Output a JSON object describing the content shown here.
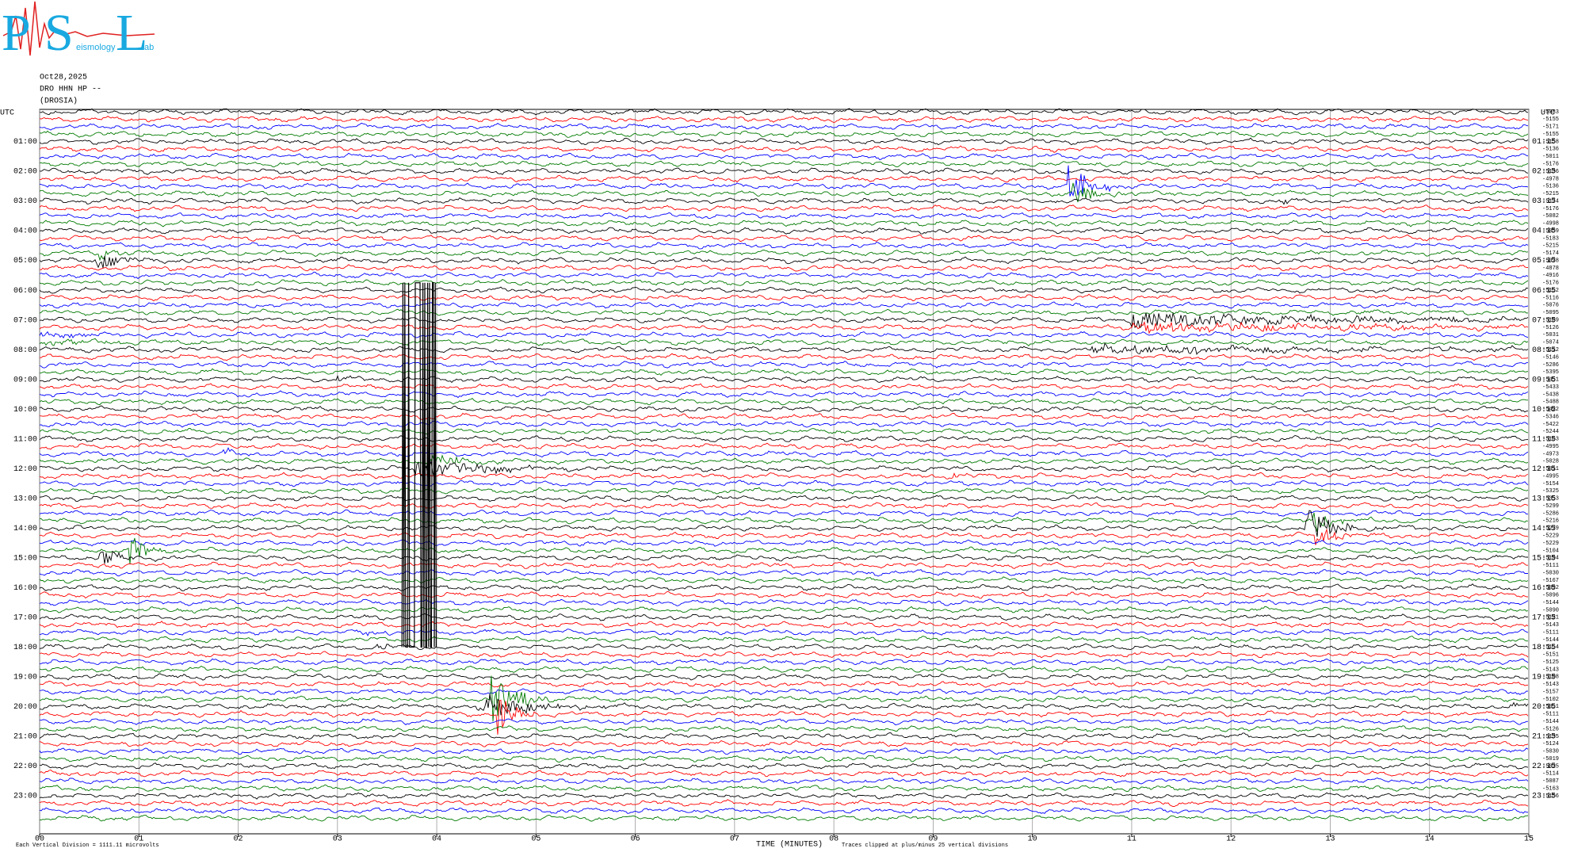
{
  "logo": {
    "letters": [
      "P",
      "S",
      "L"
    ],
    "small_texts": [
      "eismology",
      "ab"
    ]
  },
  "chart_data": {
    "type": "helicorder",
    "date": "Oct28,2025",
    "station": "DRO HHN HP --",
    "station_name": "(DROSIA)",
    "utc_left": "UTC",
    "utc_right": "UTC",
    "left_labels": [
      "01:00",
      "02:00",
      "03:00",
      "04:00",
      "05:00",
      "06:00",
      "07:00",
      "08:00",
      "09:00",
      "10:00",
      "11:00",
      "12:00",
      "13:00",
      "14:00",
      "15:00",
      "16:00",
      "17:00",
      "18:00",
      "19:00",
      "20:00",
      "21:00",
      "22:00",
      "23:00"
    ],
    "right_labels": [
      "01:15",
      "02:15",
      "03:15",
      "04:15",
      "05:15",
      "06:15",
      "07:15",
      "08:15",
      "09:15",
      "10:15",
      "11:15",
      "12:15",
      "13:15",
      "14:15",
      "15:15",
      "16:15",
      "17:15",
      "18:15",
      "19:15",
      "20:15",
      "21:15",
      "22:15",
      "23:15"
    ],
    "row_offsets": [
      -5083,
      -5155,
      -5171,
      -5155,
      -5158,
      -5136,
      -5011,
      -5176,
      -5136,
      -4978,
      -5136,
      -5215,
      -5174,
      -5176,
      -5082,
      -4998,
      -5059,
      -5183,
      -5215,
      -5174,
      -5078,
      -4878,
      -4916,
      -5176,
      -5152,
      -5116,
      -5076,
      -5095,
      -5189,
      -5126,
      -5031,
      -5074,
      -5112,
      -5146,
      -5286,
      -5395,
      -5451,
      -5433,
      -5438,
      -5488,
      -5422,
      -5346,
      -5422,
      -5244,
      -5163,
      -4995,
      -4973,
      -5028,
      -5011,
      -4995,
      -5154,
      -5325,
      -5353,
      -5299,
      -5286,
      -5216,
      -5279,
      -5229,
      -5229,
      -5104,
      -5194,
      -5111,
      -5030,
      -5167,
      -5092,
      -5096,
      -5144,
      -5090,
      -5121,
      -5143,
      -5111,
      -5144,
      -5154,
      -5151,
      -5125,
      -5143,
      -5108,
      -5143,
      -5157,
      -5102,
      -5051,
      -5111,
      -5144,
      -5126,
      -5135,
      -5124,
      -5030,
      -5019,
      -5025,
      -5114,
      -5087,
      -5163,
      -5156
    ],
    "xlim": [
      0,
      15
    ],
    "xticks": [
      {
        "value": 0,
        "label": "00"
      },
      {
        "value": 1,
        "label": "01"
      },
      {
        "value": 2,
        "label": "02"
      },
      {
        "value": 3,
        "label": "03"
      },
      {
        "value": 4,
        "label": "04"
      },
      {
        "value": 5,
        "label": "05"
      },
      {
        "value": 6,
        "label": "06"
      },
      {
        "value": 7,
        "label": "07"
      },
      {
        "value": 8,
        "label": "08"
      },
      {
        "value": 9,
        "label": "09"
      },
      {
        "value": 10,
        "label": "10"
      },
      {
        "value": 11,
        "label": "11"
      },
      {
        "value": 12,
        "label": "12"
      },
      {
        "value": 13,
        "label": "13"
      },
      {
        "value": 14,
        "label": "14"
      },
      {
        "value": 15,
        "label": "15"
      }
    ],
    "xlabel": "TIME (MINUTES)",
    "scale_note": "Each Vertical Division = 1111.11 microvolts",
    "clip_note": "Traces clipped at plus/minus 25 vertical divisions",
    "trace_colors": [
      "#000000",
      "#ff0000",
      "#0000ff",
      "#007a00"
    ],
    "grid": true
  }
}
